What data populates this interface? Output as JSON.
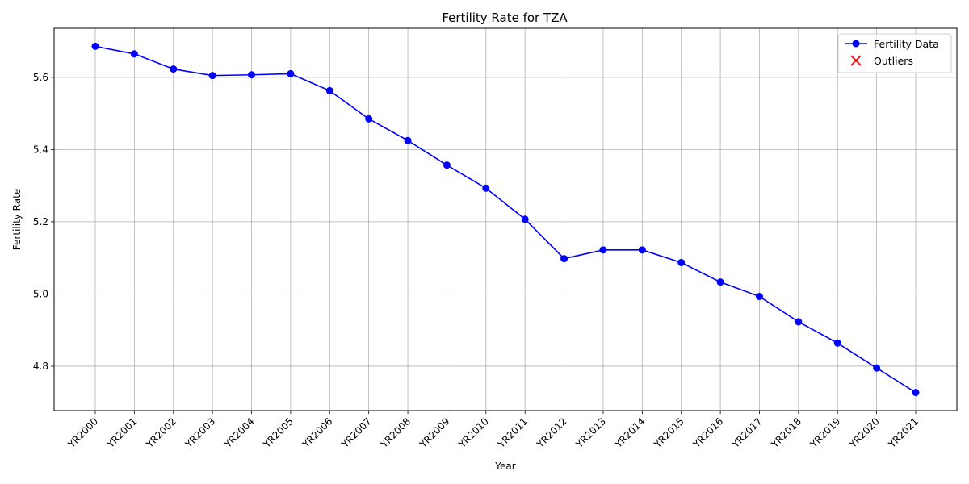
{
  "colors": {
    "series_line": "#0000ff",
    "outlier_marker": "#ff0000",
    "grid": "#b0b0b0",
    "axes": "#000000"
  },
  "chart_data": {
    "type": "line",
    "title": "Fertility Rate for TZA",
    "xlabel": "Year",
    "ylabel": "Fertility Rate",
    "categories": [
      "YR2000",
      "YR2001",
      "YR2002",
      "YR2003",
      "YR2004",
      "YR2005",
      "YR2006",
      "YR2007",
      "YR2008",
      "YR2009",
      "YR2010",
      "YR2011",
      "YR2012",
      "YR2013",
      "YR2014",
      "YR2015",
      "YR2016",
      "YR2017",
      "YR2018",
      "YR2019",
      "YR2020",
      "YR2021"
    ],
    "series": [
      {
        "name": "Fertility Data",
        "marker": "circle",
        "values": [
          5.686,
          5.665,
          5.623,
          5.605,
          5.607,
          5.61,
          5.563,
          5.485,
          5.425,
          5.357,
          5.293,
          5.207,
          5.098,
          5.122,
          5.122,
          5.087,
          5.033,
          4.993,
          4.923,
          4.864,
          4.795,
          4.727
        ]
      }
    ],
    "outliers": {
      "name": "Outliers",
      "marker": "x",
      "points": []
    },
    "yticks": [
      "4.8",
      "5.0",
      "5.2",
      "5.4",
      "5.6"
    ],
    "ylim": [
      4.677,
      5.736
    ],
    "grid": true,
    "legend_position": "top-right",
    "xtick_rotation": 45
  }
}
